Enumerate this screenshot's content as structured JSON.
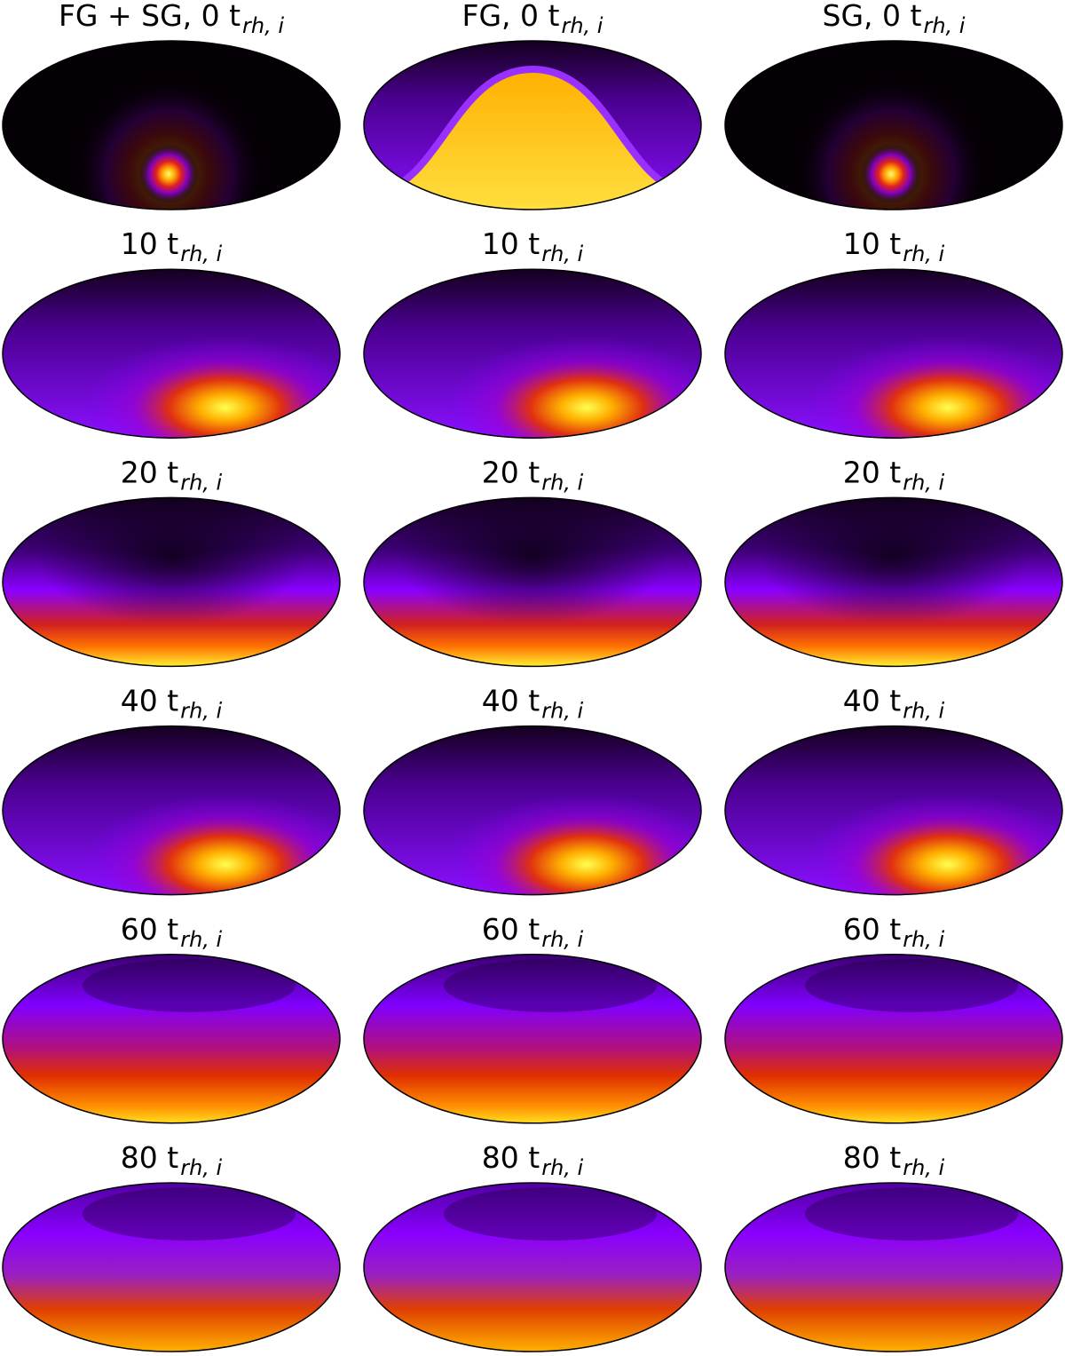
{
  "panels": [
    [
      {
        "label": "FG + SG, 0 t",
        "subscript": "rh, i"
      },
      {
        "label": "FG, 0 t",
        "subscript": "rh, i"
      },
      {
        "label": "SG, 0 t",
        "subscript": "rh, i"
      }
    ],
    [
      {
        "label": "10 t",
        "subscript": "rh, i"
      },
      {
        "label": "10 t",
        "subscript": "rh, i"
      },
      {
        "label": "10 t",
        "subscript": "rh, i"
      }
    ],
    [
      {
        "label": "20 t",
        "subscript": "rh, i"
      },
      {
        "label": "20 t",
        "subscript": "rh, i"
      },
      {
        "label": "20 t",
        "subscript": "rh, i"
      }
    ],
    [
      {
        "label": "40 t",
        "subscript": "rh, i"
      },
      {
        "label": "40 t",
        "subscript": "rh, i"
      },
      {
        "label": "40 t",
        "subscript": "rh, i"
      }
    ],
    [
      {
        "label": "60 t",
        "subscript": "rh, i"
      },
      {
        "label": "60 t",
        "subscript": "rh, i"
      },
      {
        "label": "60 t",
        "subscript": "rh, i"
      }
    ],
    [
      {
        "label": "80 t",
        "subscript": "rh, i"
      },
      {
        "label": "80 t",
        "subscript": "rh, i"
      },
      {
        "label": "80 t",
        "subscript": "rh, i"
      }
    ]
  ]
}
